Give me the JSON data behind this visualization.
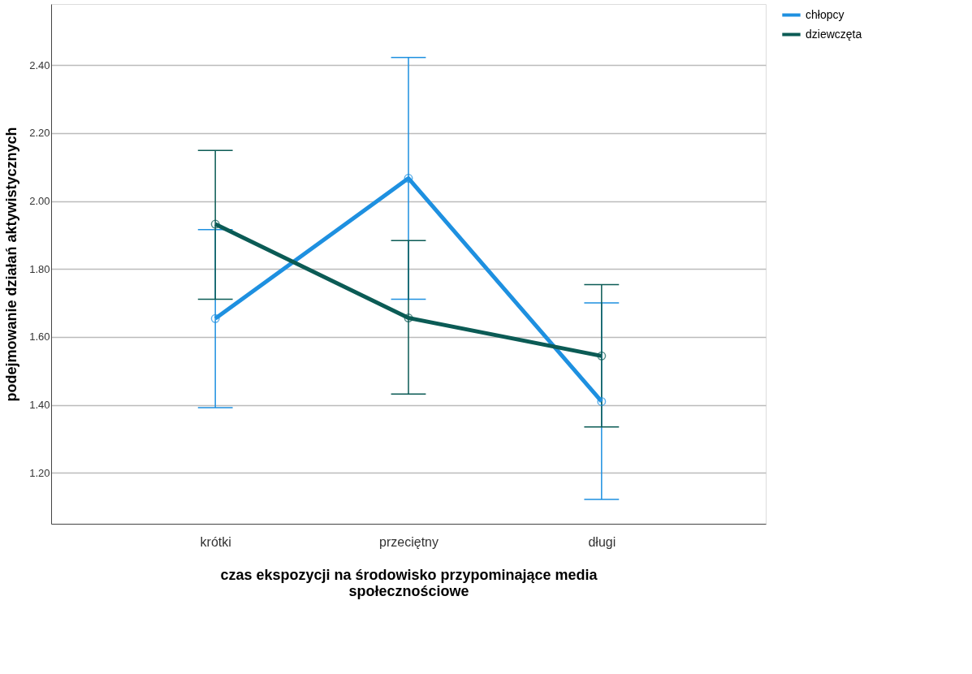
{
  "chart_data": {
    "type": "line",
    "xlabel": "czas ekspozycji na środowisko przypominające media społecznościowe",
    "ylabel": "podejmowanie działań aktywistycznych",
    "categories": [
      "krótki",
      "przeciętny",
      "długi"
    ],
    "series": [
      {
        "name": "chłopcy",
        "color": "#1e90e0",
        "values": [
          1.654,
          2.067,
          1.41
        ],
        "errors": [
          [
            1.392,
            1.916
          ],
          [
            1.711,
            2.423
          ],
          [
            1.122,
            1.7
          ]
        ]
      },
      {
        "name": "dziewczęta",
        "color": "#0b5b55",
        "values": [
          1.932,
          1.656,
          1.544
        ],
        "errors": [
          [
            1.711,
            2.149
          ],
          [
            1.432,
            1.884
          ],
          [
            1.335,
            1.754
          ]
        ]
      }
    ],
    "ylim": [
      1.05,
      2.58
    ],
    "yticks": [
      {
        "value": 1.2,
        "label": "1.20"
      },
      {
        "value": 1.4,
        "label": "1.40"
      },
      {
        "value": 1.6,
        "label": "1.60"
      },
      {
        "value": 1.8,
        "label": "1.80"
      },
      {
        "value": 2.0,
        "label": "2.00"
      },
      {
        "value": 2.2,
        "label": "2.20"
      },
      {
        "value": 2.4,
        "label": "2.40"
      }
    ],
    "grid": "y",
    "legend": "top right",
    "marker": "circle",
    "line_style": "solid"
  }
}
